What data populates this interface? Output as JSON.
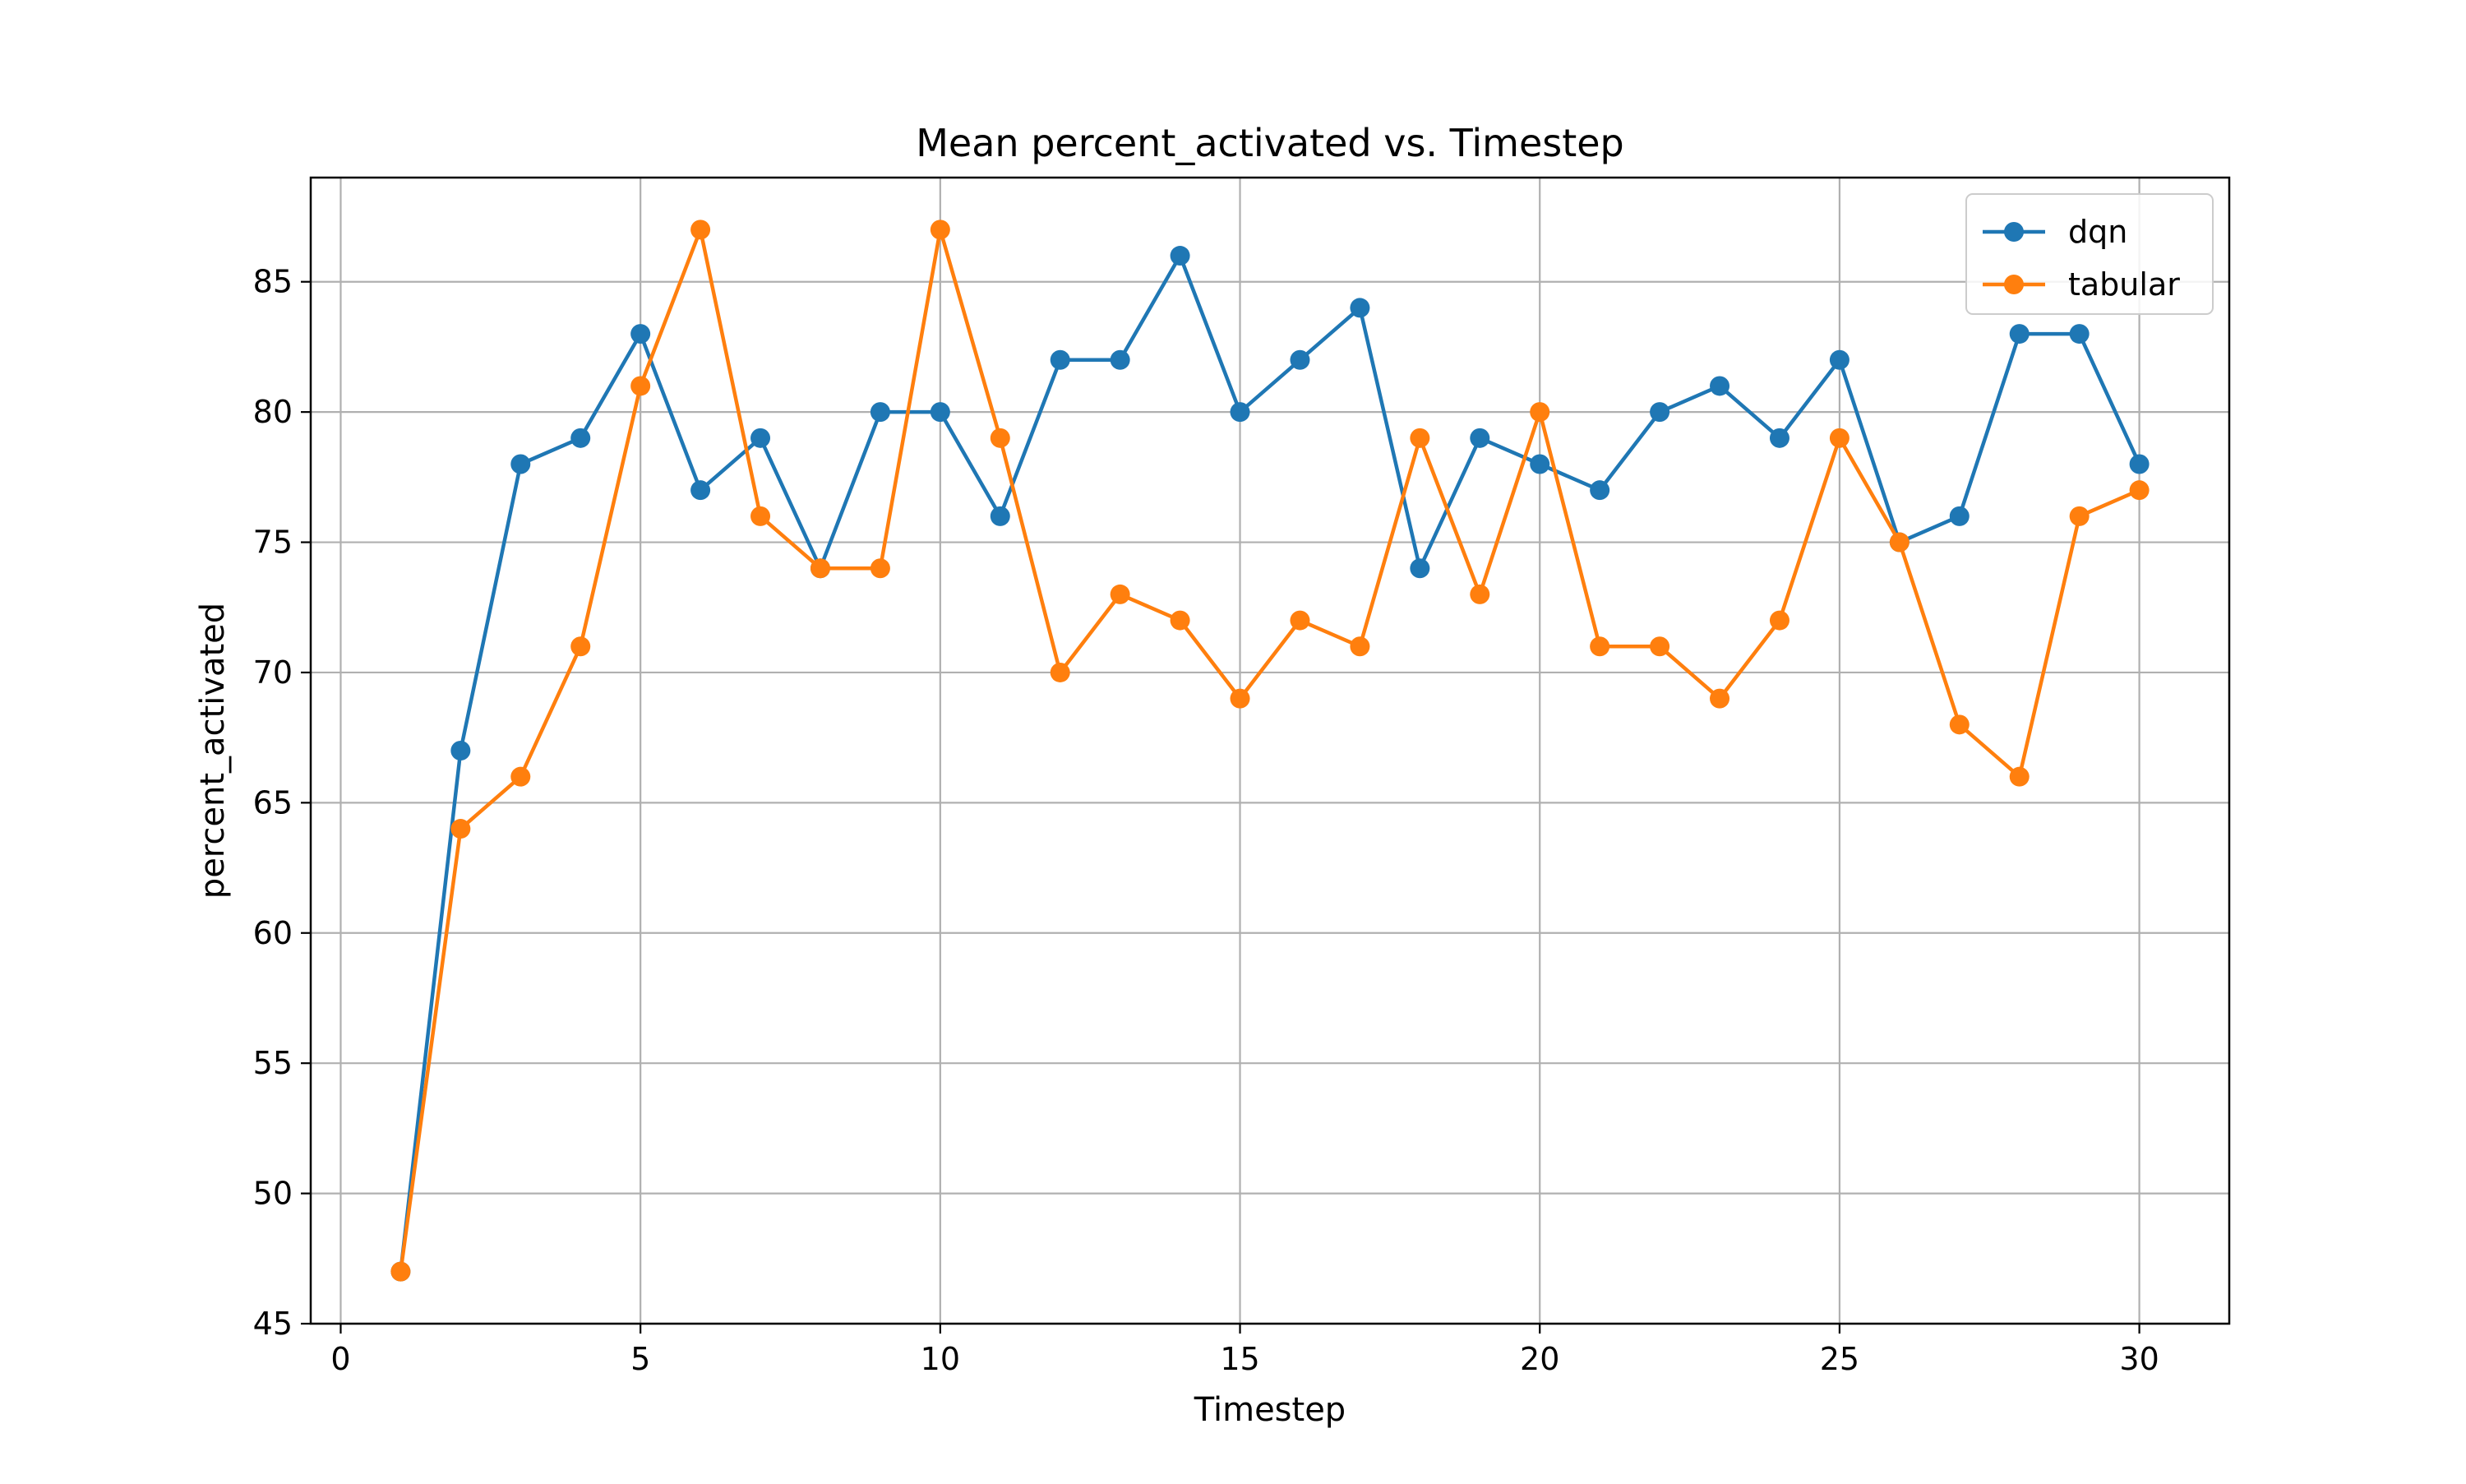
{
  "chart_data": {
    "type": "line",
    "title": "Mean percent_activated vs. Timestep",
    "xlabel": "Timestep",
    "ylabel": "percent_activated",
    "xlim": [
      -0.5,
      31.5
    ],
    "ylim": [
      45,
      89
    ],
    "xticks": [
      0,
      5,
      10,
      15,
      20,
      25,
      30
    ],
    "yticks": [
      45,
      50,
      55,
      60,
      65,
      70,
      75,
      80,
      85
    ],
    "grid": true,
    "legend_position": "top-right",
    "x": [
      1,
      2,
      3,
      4,
      5,
      6,
      7,
      8,
      9,
      10,
      11,
      12,
      13,
      14,
      15,
      16,
      17,
      18,
      19,
      20,
      21,
      22,
      23,
      24,
      25,
      26,
      27,
      28,
      29,
      30
    ],
    "series": [
      {
        "name": "dqn",
        "color": "#1f77b4",
        "marker": "circle",
        "values": [
          47,
          67,
          78,
          79,
          83,
          77,
          79,
          74,
          80,
          80,
          76,
          82,
          82,
          86,
          80,
          82,
          84,
          74,
          79,
          78,
          77,
          80,
          81,
          79,
          82,
          75,
          76,
          83,
          83,
          78
        ]
      },
      {
        "name": "tabular",
        "color": "#ff7f0e",
        "marker": "circle",
        "values": [
          47,
          64,
          66,
          71,
          81,
          87,
          76,
          74,
          74,
          87,
          79,
          70,
          73,
          72,
          69,
          72,
          71,
          79,
          73,
          80,
          71,
          71,
          69,
          72,
          79,
          75,
          68,
          66,
          76,
          77
        ]
      }
    ]
  }
}
